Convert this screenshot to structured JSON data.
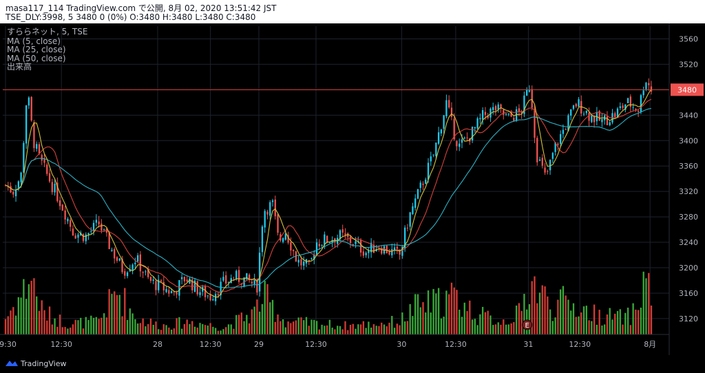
{
  "header": {
    "line1": "masa117_114 TradingView.com で公開, 8月 02, 2020 13:51:42 JST",
    "line2": "TSE_DLY:3998, 5 3480 0 (0%) O:3480 H:3480 L:3480 C:3480"
  },
  "legend": {
    "symbol": "すららネット, 5, TSE",
    "ma5": "MA (5, close)",
    "ma25": "MA (25, close)",
    "ma50": "MA (50, close)",
    "volume": "出来高"
  },
  "footer": {
    "brand": "TradingView"
  },
  "colors": {
    "up": "#26a69a",
    "up_candle": "#1ec8e8",
    "down": "#ef5350",
    "ma5": "#d4c23a",
    "ma25": "#2ab3c7",
    "ma50": "#d6413a",
    "vol_up": "#3aa83a",
    "vol_down": "#d33b34",
    "price_line": "#d6413a",
    "price_label_bg": "#ef5350"
  },
  "chart_data": {
    "type": "candlestick",
    "interval": "5",
    "y_axis": {
      "position": "right",
      "ticks": [
        3120,
        3160,
        3200,
        3240,
        3280,
        3320,
        3360,
        3400,
        3440,
        3480,
        3520,
        3560
      ],
      "range": [
        3095,
        3580
      ]
    },
    "x_axis": {
      "ticks": [
        "09:30",
        "12:30",
        "28",
        "12:30",
        "29",
        "12:30",
        "30",
        "12:30",
        "31",
        "12:30",
        "8月"
      ]
    },
    "last_price": {
      "value": 3480,
      "label": "3480"
    },
    "earnings_marker": {
      "label": "E",
      "day": "31"
    },
    "series": [
      {
        "name": "MA (5, close)"
      },
      {
        "name": "MA (25, close)"
      },
      {
        "name": "MA (50, close)"
      },
      {
        "name": "出来高"
      }
    ],
    "close_path": [
      [
        0,
        3330
      ],
      [
        1.2,
        3320
      ],
      [
        2.5,
        3345
      ],
      [
        3.5,
        3480
      ],
      [
        4.5,
        3400
      ],
      [
        5.5,
        3370
      ],
      [
        7,
        3340
      ],
      [
        9,
        3300
      ],
      [
        11,
        3255
      ],
      [
        13,
        3250
      ],
      [
        15,
        3270
      ],
      [
        17,
        3230
      ],
      [
        19,
        3195
      ],
      [
        21,
        3215
      ],
      [
        23,
        3180
      ],
      [
        25,
        3170
      ],
      [
        27,
        3160
      ],
      [
        29,
        3185
      ],
      [
        31,
        3165
      ],
      [
        33,
        3155
      ],
      [
        35,
        3175
      ],
      [
        37,
        3185
      ],
      [
        39,
        3180
      ],
      [
        40.5,
        3170
      ],
      [
        41.5,
        3290
      ],
      [
        43,
        3300
      ],
      [
        44,
        3240
      ],
      [
        45,
        3260
      ],
      [
        47,
        3210
      ],
      [
        49,
        3200
      ],
      [
        50,
        3240
      ],
      [
        52,
        3245
      ],
      [
        54,
        3250
      ],
      [
        56,
        3240
      ],
      [
        58,
        3225
      ],
      [
        60,
        3235
      ],
      [
        62,
        3225
      ],
      [
        63.5,
        3220
      ],
      [
        65,
        3280
      ],
      [
        67,
        3330
      ],
      [
        69,
        3380
      ],
      [
        71,
        3460
      ],
      [
        72,
        3420
      ],
      [
        73,
        3390
      ],
      [
        75,
        3410
      ],
      [
        77,
        3440
      ],
      [
        79,
        3450
      ],
      [
        81,
        3435
      ],
      [
        83,
        3445
      ],
      [
        84.5,
        3490
      ],
      [
        85.5,
        3380
      ],
      [
        87,
        3340
      ],
      [
        88.5,
        3390
      ],
      [
        90,
        3420
      ],
      [
        92,
        3460
      ],
      [
        94,
        3440
      ],
      [
        96,
        3430
      ],
      [
        98,
        3440
      ],
      [
        100,
        3460
      ],
      [
        102,
        3450
      ],
      [
        103,
        3500
      ],
      [
        104,
        3480
      ]
    ],
    "volume_profile": [
      [
        0,
        15
      ],
      [
        3,
        40
      ],
      [
        4,
        55
      ],
      [
        6,
        20
      ],
      [
        10,
        10
      ],
      [
        15,
        12
      ],
      [
        18,
        40
      ],
      [
        21,
        15
      ],
      [
        25,
        8
      ],
      [
        30,
        12
      ],
      [
        35,
        6
      ],
      [
        40,
        20
      ],
      [
        41.5,
        35
      ],
      [
        45,
        12
      ],
      [
        50,
        10
      ],
      [
        55,
        8
      ],
      [
        60,
        10
      ],
      [
        63.5,
        12
      ],
      [
        66,
        25
      ],
      [
        70,
        30
      ],
      [
        72,
        35
      ],
      [
        76,
        18
      ],
      [
        80,
        12
      ],
      [
        83,
        20
      ],
      [
        84.5,
        50
      ],
      [
        86,
        40
      ],
      [
        88,
        25
      ],
      [
        90,
        30
      ],
      [
        95,
        18
      ],
      [
        100,
        15
      ],
      [
        102,
        25
      ],
      [
        103,
        60
      ],
      [
        104,
        30
      ]
    ]
  }
}
